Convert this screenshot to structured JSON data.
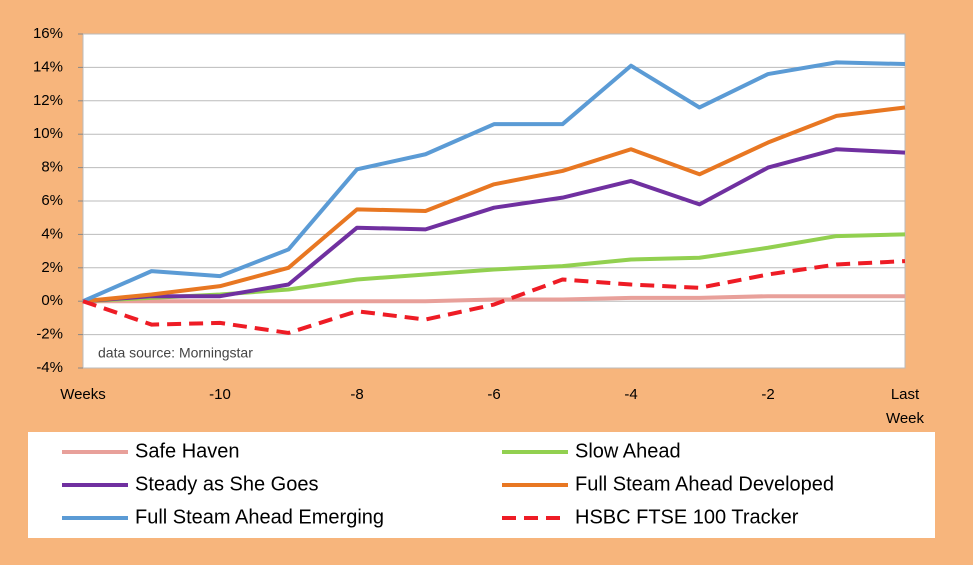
{
  "chart_data": {
    "type": "line",
    "categories": [
      "Weeks",
      null,
      "-10",
      null,
      "-8",
      null,
      "-6",
      null,
      "-4",
      null,
      "-2",
      null,
      "Last Week"
    ],
    "series": [
      {
        "name": "Safe Haven",
        "color": "#e8a09a",
        "values": [
          0,
          0,
          0,
          0,
          0,
          0,
          0.1,
          0.1,
          0.2,
          0.2,
          0.3,
          0.3,
          0.3
        ]
      },
      {
        "name": "Slow Ahead",
        "color": "#92d050",
        "values": [
          0,
          0.2,
          0.4,
          0.7,
          1.3,
          1.6,
          1.9,
          2.1,
          2.5,
          2.6,
          3.2,
          3.9,
          4.0
        ]
      },
      {
        "name": "Steady as She Goes",
        "color": "#7030a0",
        "values": [
          0,
          0.3,
          0.3,
          1.0,
          4.4,
          4.3,
          5.6,
          6.2,
          7.2,
          5.8,
          8.0,
          9.1,
          8.9
        ]
      },
      {
        "name": "Full Steam Ahead Developed",
        "color": "#e87722",
        "values": [
          0,
          0.4,
          0.9,
          2.0,
          5.5,
          5.4,
          7.0,
          7.8,
          9.1,
          7.6,
          9.5,
          11.1,
          11.6
        ]
      },
      {
        "name": "Full Steam Ahead Emerging",
        "color": "#5b9bd5",
        "values": [
          0,
          1.8,
          1.5,
          3.1,
          7.9,
          8.8,
          10.6,
          10.6,
          14.1,
          11.6,
          13.6,
          14.3,
          14.2
        ]
      },
      {
        "name": "HSBC FTSE 100 Tracker",
        "color": "#ee1c25",
        "dashed": true,
        "values": [
          0,
          -1.4,
          -1.3,
          -1.9,
          -0.6,
          -1.1,
          -0.2,
          1.3,
          1.0,
          0.8,
          1.6,
          2.2,
          2.4
        ]
      }
    ],
    "ylim": [
      -4,
      16
    ],
    "yticks": [
      {
        "value": -4,
        "label": "-4%"
      },
      {
        "value": -2,
        "label": "-2%"
      },
      {
        "value": 0,
        "label": "0%"
      },
      {
        "value": 2,
        "label": "2%"
      },
      {
        "value": 4,
        "label": "4%"
      },
      {
        "value": 6,
        "label": "6%"
      },
      {
        "value": 8,
        "label": "8%"
      },
      {
        "value": 10,
        "label": "10%"
      },
      {
        "value": 12,
        "label": "12%"
      },
      {
        "value": 14,
        "label": "14%"
      },
      {
        "value": 16,
        "label": "16%"
      }
    ],
    "grid": true,
    "annotation": "data source: Morningstar"
  }
}
